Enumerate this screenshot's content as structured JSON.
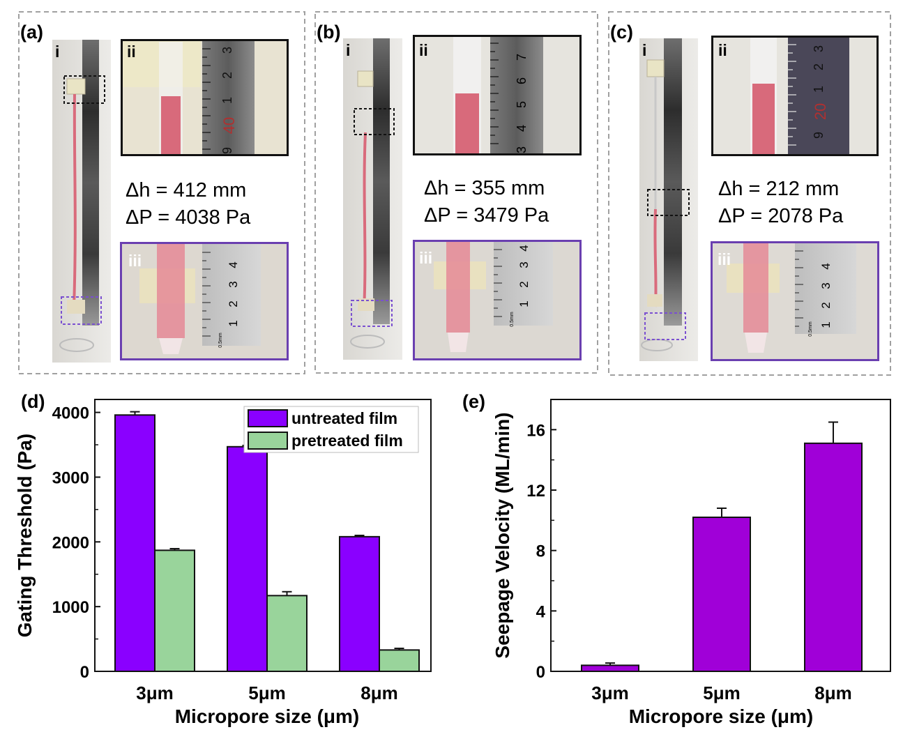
{
  "panels": [
    {
      "label": "(a)",
      "sub_i": "i",
      "sub_ii": "ii",
      "sub_iii": "iii",
      "dh": "Δh = 412 mm",
      "dp": "ΔP = 4038 Pa",
      "ruler_ii": [
        "3",
        "2",
        "1",
        "40",
        "9"
      ],
      "ruler_iii": [
        "4",
        "3",
        "2",
        "1"
      ],
      "ruler_mark": "0.5mm"
    },
    {
      "label": "(b)",
      "sub_i": "i",
      "sub_ii": "ii",
      "sub_iii": "iii",
      "dh": "Δh = 355 mm",
      "dp": "ΔP = 3479 Pa",
      "ruler_ii": [
        "7",
        "6",
        "5",
        "4",
        "3"
      ],
      "ruler_iii": [
        "4",
        "3",
        "2",
        "1"
      ],
      "ruler_mark": "0.5mm"
    },
    {
      "label": "(c)",
      "sub_i": "i",
      "sub_ii": "ii",
      "sub_iii": "iii",
      "dh": "Δh = 212 mm",
      "dp": "ΔP = 2078 Pa",
      "ruler_ii": [
        "3",
        "2",
        "1",
        "20",
        "9"
      ],
      "ruler_iii": [
        "4",
        "3",
        "2",
        "1"
      ],
      "ruler_mark": "0.5mm"
    }
  ],
  "colors": {
    "untreated": "#8a00ff",
    "pretreated": "#99d49b",
    "seepage": "#a000d8",
    "liquid": "#e07a88",
    "frame_purple": "#6a3fb0",
    "dashed_gray": "#a0a0a0"
  },
  "chart_data": [
    {
      "panel": "(d)",
      "type": "bar",
      "title": "",
      "xlabel": "Micropore size (μm)",
      "ylabel": "Gating Threshold (Pa)",
      "categories": [
        "3μm",
        "5μm",
        "8μm"
      ],
      "ylim": [
        0,
        4200
      ],
      "yticks": [
        0,
        1000,
        2000,
        3000,
        4000
      ],
      "legend_position": "top-right",
      "series": [
        {
          "name": "untreated film",
          "values": [
            3960,
            3470,
            2080
          ],
          "errors": [
            50,
            20,
            20
          ]
        },
        {
          "name": "pretreated film",
          "values": [
            1870,
            1170,
            330
          ],
          "errors": [
            25,
            60,
            25
          ]
        }
      ]
    },
    {
      "panel": "(e)",
      "type": "bar",
      "title": "",
      "xlabel": "Micropore size (μm)",
      "ylabel": "Seepage Velocity (ML/min)",
      "categories": [
        "3μm",
        "5μm",
        "8μm"
      ],
      "ylim": [
        0,
        18
      ],
      "yticks": [
        0,
        4,
        8,
        12,
        16
      ],
      "series": [
        {
          "name": "Seepage Velocity",
          "values": [
            0.4,
            10.2,
            15.1
          ],
          "errors": [
            0.15,
            0.6,
            1.4
          ]
        }
      ]
    }
  ]
}
